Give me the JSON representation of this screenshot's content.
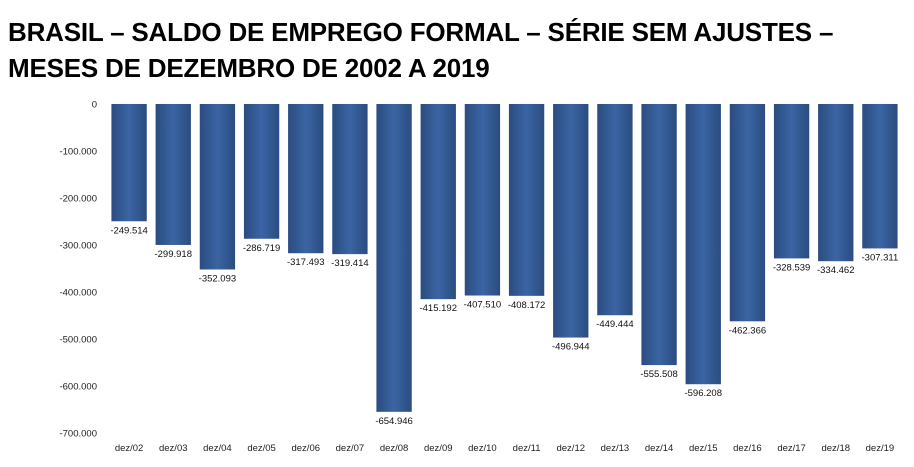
{
  "chart_data": {
    "type": "bar",
    "title": "BRASIL – SALDO DE EMPREGO FORMAL – SÉRIE SEM AJUSTES – MESES DE DEZEMBRO DE 2002 A 2019",
    "xlabel": "",
    "ylabel": "",
    "ylim": [
      -700000,
      0
    ],
    "yticks": [
      0,
      -100000,
      -200000,
      -300000,
      -400000,
      -500000,
      -600000,
      -700000
    ],
    "ytick_labels": [
      "0",
      "-100.000",
      "-200.000",
      "-300.000",
      "-400.000",
      "-500.000",
      "-600.000",
      "-700.000"
    ],
    "categories": [
      "dez/02",
      "dez/03",
      "dez/04",
      "dez/05",
      "dez/06",
      "dez/07",
      "dez/08",
      "dez/09",
      "dez/10",
      "dez/11",
      "dez/12",
      "dez/13",
      "dez/14",
      "dez/15",
      "dez/16",
      "dez/17",
      "dez/18",
      "dez/19"
    ],
    "values": [
      -249514,
      -299918,
      -352093,
      -286719,
      -317493,
      -319414,
      -654946,
      -415192,
      -407510,
      -408172,
      -496944,
      -449444,
      -555508,
      -596208,
      -462366,
      -328539,
      -334462,
      -307311
    ],
    "value_labels": [
      "-249.514",
      "-299.918",
      "-352.093",
      "-286.719",
      "-317.493",
      "-319.414",
      "-654.946",
      "-415.192",
      "-407.510",
      "-408.172",
      "-496.944",
      "-449.444",
      "-555.508",
      "-596.208",
      "-462.366",
      "-328.539",
      "-334.462",
      "-307.311"
    ],
    "bar_color": "#3a65a3",
    "bar_color_dark": "#2b4c80",
    "grid": false,
    "legend": "none"
  }
}
